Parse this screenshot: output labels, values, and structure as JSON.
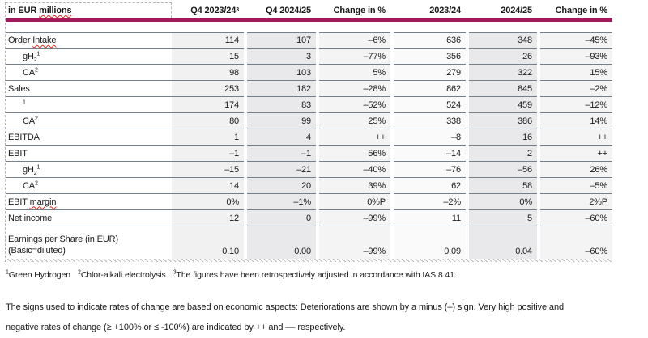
{
  "colors": {
    "accent": "#a3195b",
    "row_line": "#75808a",
    "squiggle_red": "#e0281e",
    "col_bg": [
      "#f1f1f1",
      "#e9e9eb",
      "#f4f4f4",
      "#fafafa",
      "#e9e9eb",
      "#f4f4f4"
    ]
  },
  "table": {
    "unit_label_plain": "in EUR ",
    "unit_label_squiggle": "millions",
    "columns": [
      {
        "text": "Q4 2023/24",
        "sup": "3"
      },
      {
        "text": "Q4 2024/25"
      },
      {
        "text": "Change in %"
      },
      {
        "text": "2023/24"
      },
      {
        "text": "2024/25"
      },
      {
        "text": "Change in %"
      }
    ],
    "rows": [
      {
        "plain": "Order ",
        "squiggle": "Intake",
        "indent": false,
        "values": [
          "114",
          "107",
          "–6%",
          "636",
          "348",
          "–45%"
        ]
      },
      {
        "plain": "gH",
        "sub": "2",
        "sup": "1",
        "indent": true,
        "values": [
          "15",
          "3",
          "–77%",
          "356",
          "26",
          "–93%"
        ]
      },
      {
        "plain": "CA",
        "sup": "2",
        "indent": true,
        "values": [
          "98",
          "103",
          "5%",
          "279",
          "322",
          "15%"
        ]
      },
      {
        "plain": "Sales",
        "indent": false,
        "values": [
          "253",
          "182",
          "–28%",
          "862",
          "845",
          "–2%"
        ]
      },
      {
        "plain": "",
        "sup": "1",
        "indent": true,
        "values": [
          "174",
          "83",
          "–52%",
          "524",
          "459",
          "–12%"
        ]
      },
      {
        "plain": "CA",
        "sup": "2",
        "indent": true,
        "values": [
          "80",
          "99",
          "25%",
          "338",
          "386",
          "14%"
        ]
      },
      {
        "plain": "EBITDA",
        "indent": false,
        "values": [
          "1",
          "4",
          "++",
          "–8",
          "16",
          "++"
        ]
      },
      {
        "plain": "EBIT",
        "indent": false,
        "values": [
          "–1",
          "–1",
          "56%",
          "–14",
          "2",
          "++"
        ]
      },
      {
        "plain": "gH",
        "sub": "2",
        "sup": "1",
        "indent": true,
        "values": [
          "–15",
          "–21",
          "–40%",
          "–76",
          "–56",
          "26%"
        ]
      },
      {
        "plain": "CA",
        "sup": "2",
        "indent": true,
        "values": [
          "14",
          "20",
          "39%",
          "62",
          "58",
          "–5%"
        ]
      },
      {
        "plain": "EBIT ",
        "squiggle": "margin",
        "indent": false,
        "values": [
          "0%",
          "–1%",
          "0%P",
          "–2%",
          "0%",
          "2%P"
        ]
      },
      {
        "plain": "Net income",
        "indent": false,
        "values": [
          "12",
          "0",
          "–99%",
          "11",
          "5",
          "–60%"
        ]
      },
      {
        "plain": "Earnings per Share (in EUR)",
        "line2": "(Basic=diluted)",
        "indent": false,
        "tall": true,
        "values": [
          "0.10",
          "0.00",
          "–99%",
          "0.09",
          "0.04",
          "–60%"
        ]
      }
    ]
  },
  "footnotes": [
    {
      "sup": "1",
      "text": "Green Hydrogen"
    },
    {
      "sup": "2",
      "text": "Chlor-alkali electrolysis"
    },
    {
      "sup": "3",
      "text": "The figures have been retrospectively adjusted in accordance with IAS 8.41."
    }
  ],
  "note_lines": [
    "The signs used to indicate rates of change are based on economic aspects: Deteriorations are shown by a minus (–) sign. Very high positive and",
    "negative rates of change (≥ +100% or ≤ -100%) are indicated by ++ and –– respectively."
  ]
}
